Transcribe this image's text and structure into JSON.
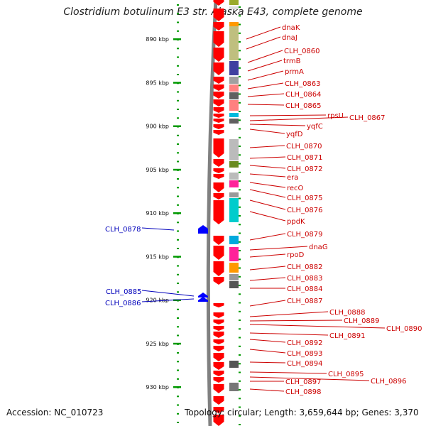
{
  "title": "Clostridium botulinum E3 str. Alaska E43, complete genome",
  "accession": "Accession: NC_010723",
  "summary": "Topology: circular; Length: 3,659,644 bp; Genes: 3,370",
  "colors": {
    "forward_gene": "#ff0000",
    "reverse_gene": "#0000ff",
    "forward_label": "#cc0000",
    "reverse_label": "#0000bb",
    "backbone": "#808080",
    "ruler": "#009900"
  },
  "ruler_ticks": [
    {
      "label": "890 kbp",
      "position_kbp": 890
    },
    {
      "label": "895 kbp",
      "position_kbp": 895
    },
    {
      "label": "900 kbp",
      "position_kbp": 900
    },
    {
      "label": "905 kbp",
      "position_kbp": 905
    },
    {
      "label": "910 kbp",
      "position_kbp": 910
    },
    {
      "label": "915 kbp",
      "position_kbp": 915
    },
    {
      "label": "920 kbp",
      "position_kbp": 920
    },
    {
      "label": "925 kbp",
      "position_kbp": 925
    },
    {
      "label": "930 kbp",
      "position_kbp": 930
    }
  ],
  "forward_labels": [
    "dnaK",
    "dnaJ",
    "CLH_0860",
    "trmB",
    "prmA",
    "CLH_0863",
    "CLH_0864",
    "CLH_0865",
    "rpsU",
    "CLH_0867",
    "yqfC",
    "yqfD",
    "CLH_0870",
    "CLH_0871",
    "CLH_0872",
    "era",
    "recO",
    "CLH_0875",
    "CLH_0876",
    "ppdK",
    "CLH_0879",
    "dnaG",
    "rpoD",
    "CLH_0882",
    "CLH_0883",
    "CLH_0884",
    "CLH_0887",
    "CLH_0888",
    "CLH_0889",
    "CLH_0890",
    "CLH_0891",
    "CLH_0892",
    "CLH_0893",
    "CLH_0894",
    "CLH_0895",
    "CLH_0896",
    "CLH_0897",
    "CLH_0898"
  ],
  "reverse_labels": [
    "CLH_0878",
    "CLH_0885",
    "CLH_0886"
  ]
}
